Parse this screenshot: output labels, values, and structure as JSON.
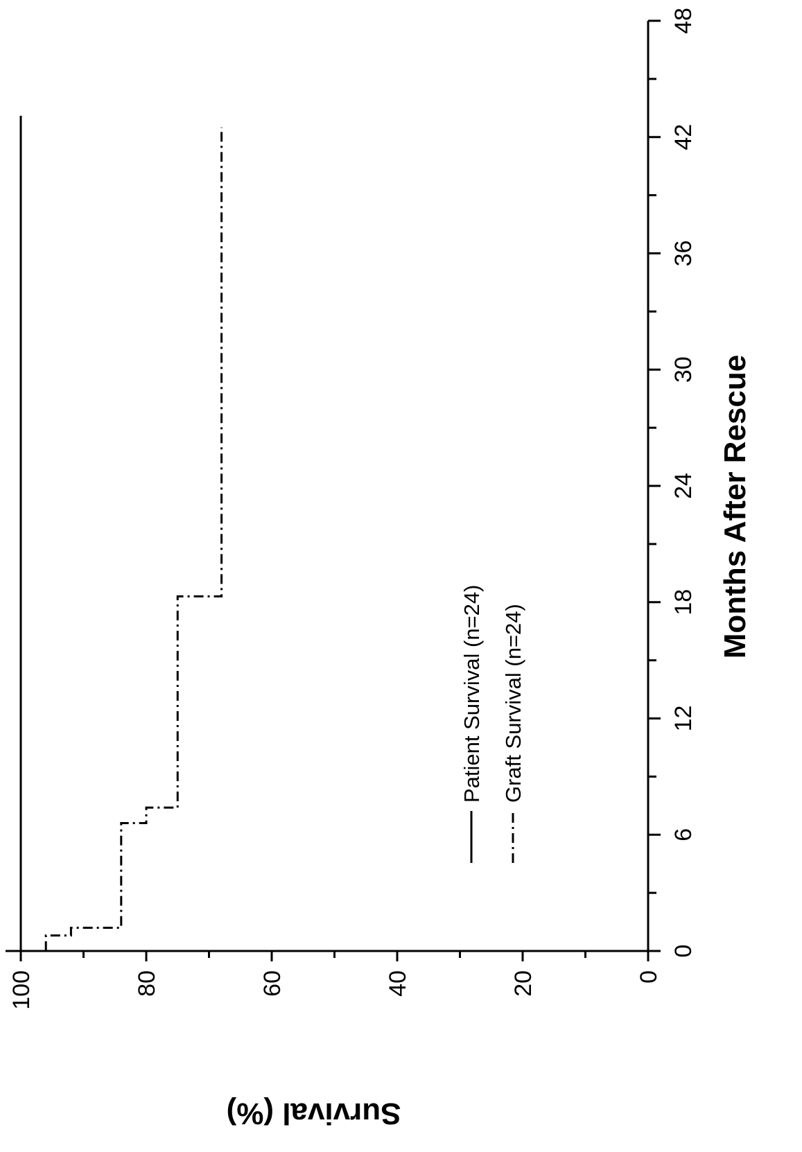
{
  "chart_data": {
    "type": "line",
    "x_label": "Months After Rescue",
    "y_label": "Survival (%)",
    "series": [
      {
        "name": "Patient Survival (n=24)",
        "color": "#000000",
        "dash": "solid",
        "x": [
          0,
          43.1
        ],
        "values": [
          100,
          100
        ]
      },
      {
        "name": "Graft Survival (n=24)",
        "color": "#000000",
        "dash": "dashdot",
        "x": [
          0,
          0.8,
          0.8,
          1.2,
          1.2,
          6.6,
          6.6,
          7.4,
          7.4,
          18.3,
          18.3,
          42.5
        ],
        "values": [
          96,
          96,
          92,
          92,
          84,
          84,
          80,
          80,
          75,
          75,
          68,
          68
        ]
      }
    ],
    "xlim": [
      0,
      48
    ],
    "xticks": [
      0,
      6,
      12,
      18,
      24,
      30,
      36,
      42,
      48
    ],
    "xminorticks": [
      3,
      9,
      15,
      21,
      27,
      33,
      39,
      45
    ],
    "ylim": [
      0,
      100
    ],
    "yticks": [
      0,
      20,
      40,
      60,
      80,
      100
    ],
    "yminorticks": [
      10,
      30,
      50,
      70,
      90
    ],
    "grid": false
  }
}
